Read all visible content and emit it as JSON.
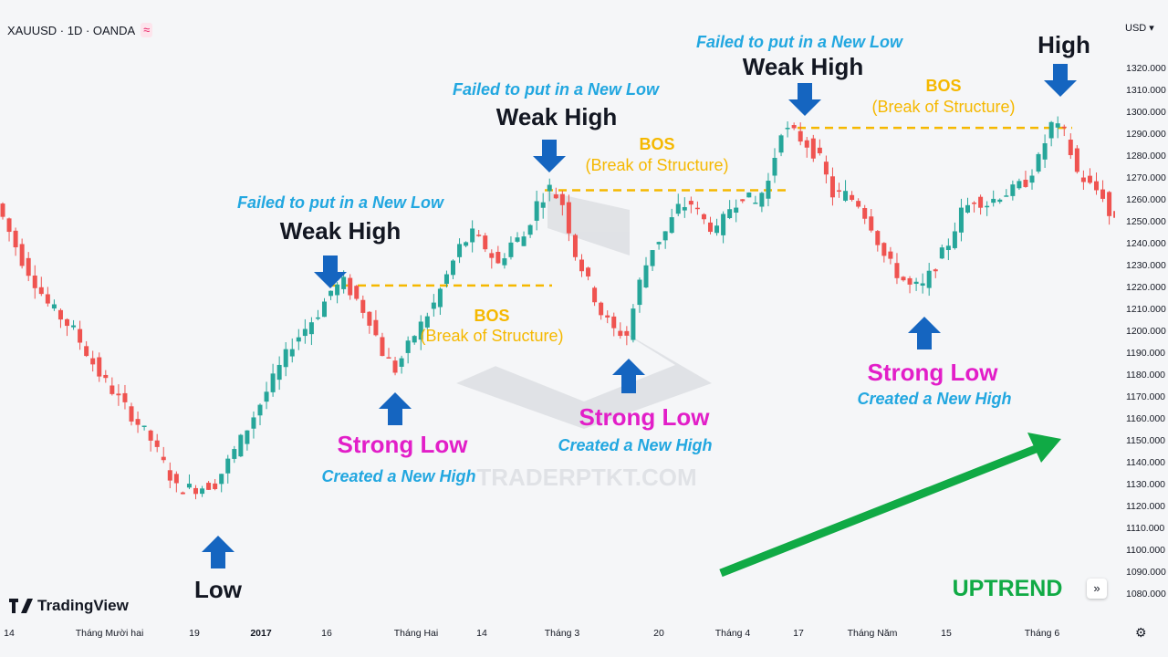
{
  "header": {
    "symbol": "XAUUSD · 1D · OANDA",
    "indicator_icon": "≈"
  },
  "brand": {
    "name": "TradingView",
    "icon": "tradingview-logo-icon"
  },
  "watermark": "TRADERPTKT.COM",
  "price_axis": {
    "currency": "USD",
    "ticks": [
      "1320.000",
      "1310.000",
      "1300.000",
      "1290.000",
      "1280.000",
      "1270.000",
      "1260.000",
      "1250.000",
      "1240.000",
      "1230.000",
      "1220.000",
      "1210.000",
      "1200.000",
      "1190.000",
      "1180.000",
      "1170.000",
      "1160.000",
      "1150.000",
      "1140.000",
      "1130.000",
      "1120.000",
      "1110.000",
      "1100.000",
      "1090.000",
      "1080.000"
    ]
  },
  "time_axis": [
    {
      "label": "14",
      "bold": false
    },
    {
      "label": "Tháng Mười hai",
      "bold": false
    },
    {
      "label": "19",
      "bold": false
    },
    {
      "label": "2017",
      "bold": true
    },
    {
      "label": "16",
      "bold": false
    },
    {
      "label": "Tháng Hai",
      "bold": false
    },
    {
      "label": "14",
      "bold": false
    },
    {
      "label": "Tháng 3",
      "bold": false
    },
    {
      "label": "20",
      "bold": false
    },
    {
      "label": "Tháng 4",
      "bold": false
    },
    {
      "label": "17",
      "bold": false
    },
    {
      "label": "Tháng Năm",
      "bold": false
    },
    {
      "label": "15",
      "bold": false
    },
    {
      "label": "Tháng 6",
      "bold": false
    }
  ],
  "colors": {
    "up": "#26a69a",
    "down": "#ef5350",
    "arrow": "#1565c0",
    "bos": "#f5b800",
    "failed": "#22a7e0",
    "strong": "#e21ec8",
    "trend": "#10aa45",
    "text": "#131722"
  },
  "chart_data": {
    "type": "candlestick",
    "price_ylim": [
      1075,
      1328
    ],
    "trend_label": "UPTREND",
    "annotations": {
      "low": "Low",
      "high": "High",
      "weak_high": [
        "Weak High",
        "Weak High",
        "Weak High"
      ],
      "failed": [
        "Failed to put in a New Low",
        "Failed to put in a New Low",
        "Failed to put in a New Low"
      ],
      "bos": [
        "BOS",
        "BOS",
        "BOS"
      ],
      "bos_sub": [
        "(Break of Structure)",
        "(Break of Structure)",
        "(Break of Structure)"
      ],
      "strong_low": [
        "Strong Low",
        "Strong Low",
        "Strong Low"
      ],
      "created_high": [
        "Created a New High",
        "Created a New High",
        "Created a New High"
      ]
    },
    "bos_levels": [
      1220.5,
      1264,
      1292.5
    ],
    "key_points": {
      "low": 1123,
      "strong_lows": [
        1181,
        1195,
        1215
      ],
      "weak_highs": [
        1222,
        1268,
        1294
      ],
      "high": 1296
    },
    "swing_path": [
      [
        0,
        1258
      ],
      [
        4,
        1232
      ],
      [
        8,
        1212
      ],
      [
        12,
        1200
      ],
      [
        16,
        1180
      ],
      [
        20,
        1165
      ],
      [
        24,
        1150
      ],
      [
        28,
        1128
      ],
      [
        31,
        1128
      ],
      [
        34,
        1130
      ],
      [
        38,
        1150
      ],
      [
        42,
        1172
      ],
      [
        46,
        1194
      ],
      [
        50,
        1208
      ],
      [
        52,
        1218
      ],
      [
        54,
        1222
      ],
      [
        56,
        1214
      ],
      [
        58,
        1205
      ],
      [
        60,
        1190
      ],
      [
        62,
        1182
      ],
      [
        65,
        1198
      ],
      [
        68,
        1212
      ],
      [
        70,
        1225
      ],
      [
        72,
        1238
      ],
      [
        74,
        1244
      ],
      [
        76,
        1238
      ],
      [
        78,
        1230
      ],
      [
        80,
        1240
      ],
      [
        82,
        1243
      ],
      [
        84,
        1258
      ],
      [
        86,
        1265
      ],
      [
        88,
        1258
      ],
      [
        90,
        1235
      ],
      [
        92,
        1222
      ],
      [
        94,
        1208
      ],
      [
        96,
        1200
      ],
      [
        98,
        1198
      ],
      [
        100,
        1222
      ],
      [
        102,
        1238
      ],
      [
        104,
        1245
      ],
      [
        106,
        1256
      ],
      [
        108,
        1258
      ],
      [
        110,
        1250
      ],
      [
        112,
        1245
      ],
      [
        114,
        1256
      ],
      [
        116,
        1262
      ],
      [
        118,
        1258
      ],
      [
        120,
        1268
      ],
      [
        122,
        1292
      ],
      [
        124,
        1290
      ],
      [
        126,
        1285
      ],
      [
        128,
        1278
      ],
      [
        130,
        1262
      ],
      [
        132,
        1262
      ],
      [
        134,
        1258
      ],
      [
        136,
        1248
      ],
      [
        138,
        1234
      ],
      [
        140,
        1226
      ],
      [
        142,
        1220
      ],
      [
        144,
        1220
      ],
      [
        146,
        1230
      ],
      [
        148,
        1240
      ],
      [
        150,
        1254
      ],
      [
        152,
        1260
      ],
      [
        154,
        1258
      ],
      [
        156,
        1262
      ],
      [
        158,
        1264
      ],
      [
        160,
        1268
      ],
      [
        162,
        1278
      ],
      [
        164,
        1294
      ],
      [
        166,
        1290
      ],
      [
        168,
        1272
      ],
      [
        170,
        1266
      ],
      [
        172,
        1262
      ],
      [
        173,
        1252
      ]
    ]
  }
}
